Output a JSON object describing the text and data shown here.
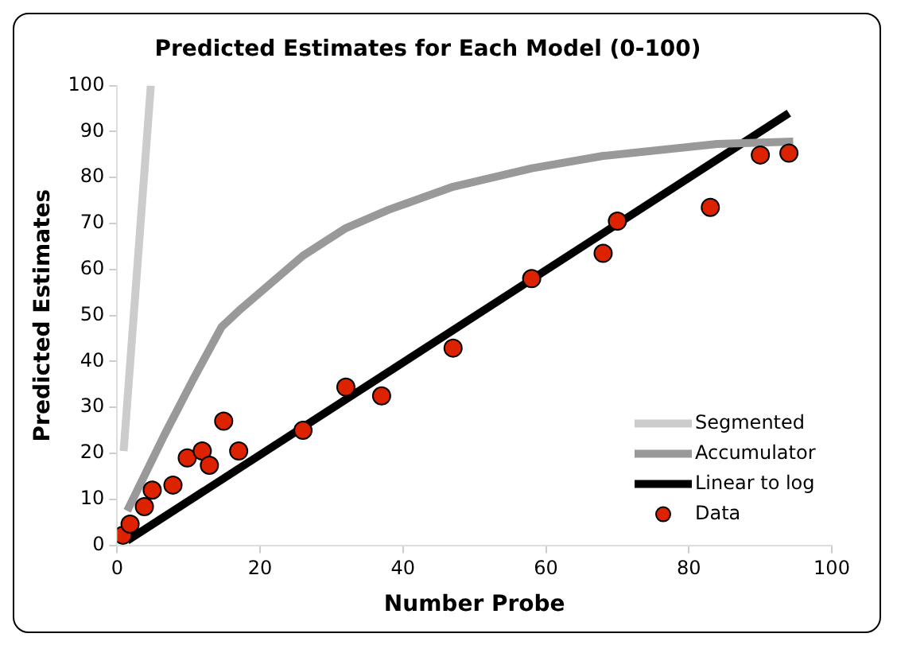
{
  "chart_data": {
    "type": "scatter",
    "title": "Predicted Estimates for Each Model (0-100)",
    "xlabel": "Number Probe",
    "ylabel": "Predicted Estimates",
    "xlim": [
      0,
      100
    ],
    "xticks": [
      0,
      20,
      40,
      60,
      80,
      100
    ],
    "ylim": [
      0,
      100
    ],
    "yticks": [
      0,
      10,
      20,
      30,
      40,
      50,
      60,
      70,
      80,
      90,
      100
    ],
    "legend": "bottom right",
    "series": [
      {
        "name": "Segmented",
        "type": "line",
        "color": "#cccccc",
        "marker": "none",
        "x": [
          0.9,
          4.7
        ],
        "values": [
          20.5,
          100
        ]
      },
      {
        "name": "Accumulator",
        "type": "line",
        "color": "#999999",
        "marker": "none",
        "x": [
          1.4,
          6.6,
          10.6,
          14.6,
          17,
          26,
          32,
          38,
          47,
          58,
          68,
          84,
          94.6
        ],
        "values": [
          7.5,
          24,
          36,
          47.5,
          51,
          63,
          69,
          73,
          78,
          82,
          84.7,
          87.3,
          87.8
        ]
      },
      {
        "name": "Linear to log",
        "type": "line",
        "color": "#000000",
        "marker": "none",
        "x": [
          1.4,
          94
        ],
        "values": [
          1,
          94
        ]
      },
      {
        "name": "Data",
        "color": "#dd2200",
        "marker": "circle",
        "x": [
          0.8,
          1.8,
          3.8,
          4.9,
          7.8,
          9.8,
          11.9,
          12.9,
          14.9,
          17,
          26,
          32,
          37,
          47,
          58,
          68,
          70,
          83,
          90,
          94
        ],
        "values": [
          2.2,
          4.6,
          8.4,
          12,
          13.1,
          19,
          20.5,
          17.4,
          27,
          20.5,
          25,
          34.4,
          32.5,
          42.9,
          58,
          63.5,
          70.5,
          73.5,
          84.9,
          85.3
        ]
      }
    ]
  }
}
